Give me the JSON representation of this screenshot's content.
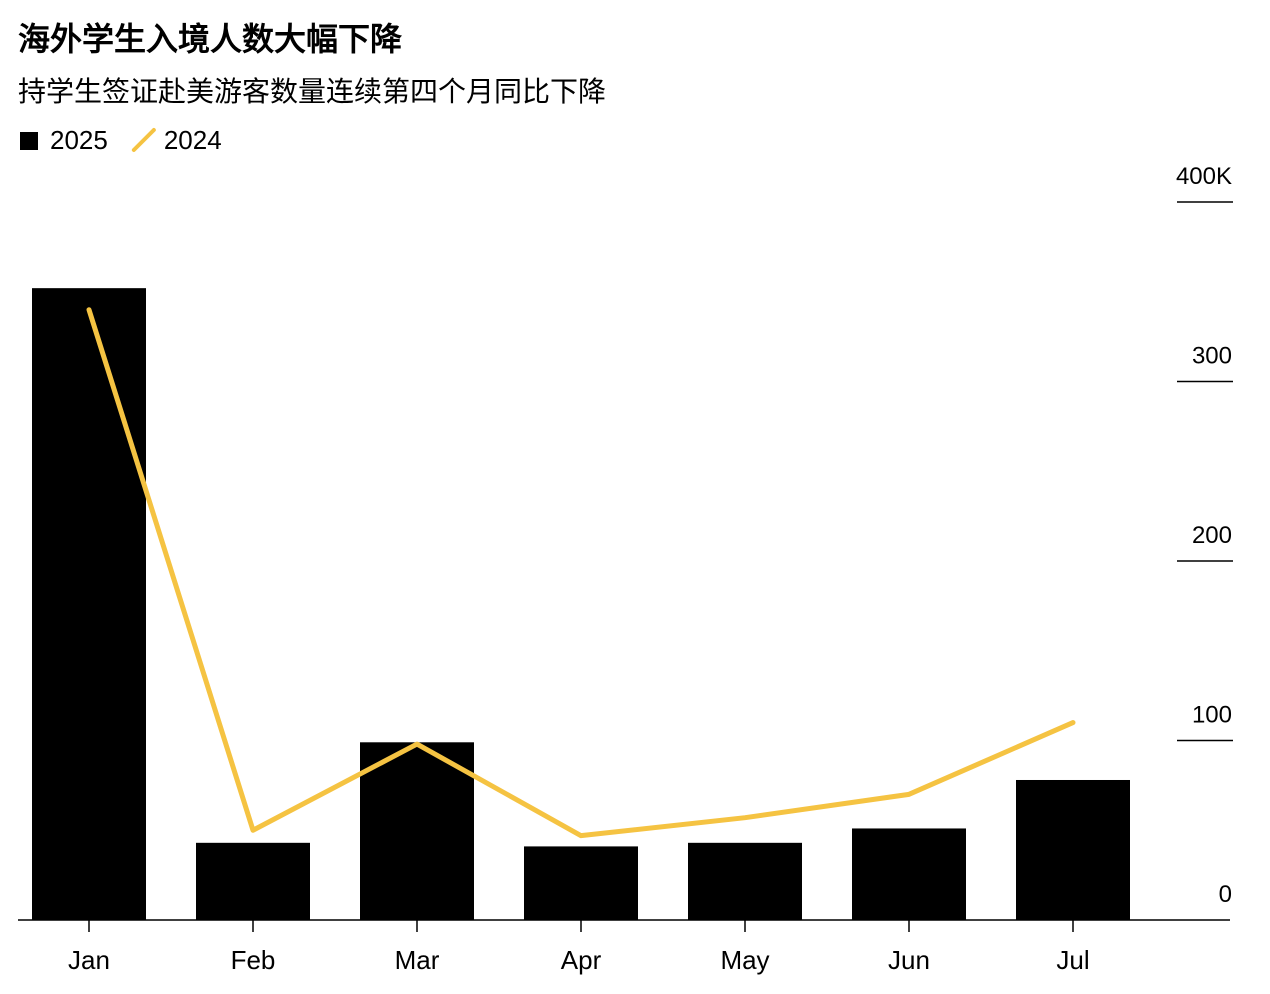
{
  "chart_data": {
    "type": "bar",
    "title": "海外学生入境人数大幅下降",
    "subtitle": "持学生签证赴美游客数量连续第四个月同比下降",
    "categories": [
      "Jan",
      "Feb",
      "Mar",
      "Apr",
      "May",
      "Jun",
      "Jul"
    ],
    "series": [
      {
        "name": "2025",
        "type": "bar",
        "color": "#000000",
        "values": [
          352,
          43,
          99,
          41,
          43,
          51,
          78
        ]
      },
      {
        "name": "2024",
        "type": "line",
        "color": "#f5c342",
        "values": [
          340,
          50,
          98,
          47,
          57,
          70,
          110
        ]
      }
    ],
    "ylim": [
      0,
      400
    ],
    "yticks": [
      0,
      100,
      200,
      300,
      {
        "value": 400,
        "label": "400K"
      }
    ]
  }
}
